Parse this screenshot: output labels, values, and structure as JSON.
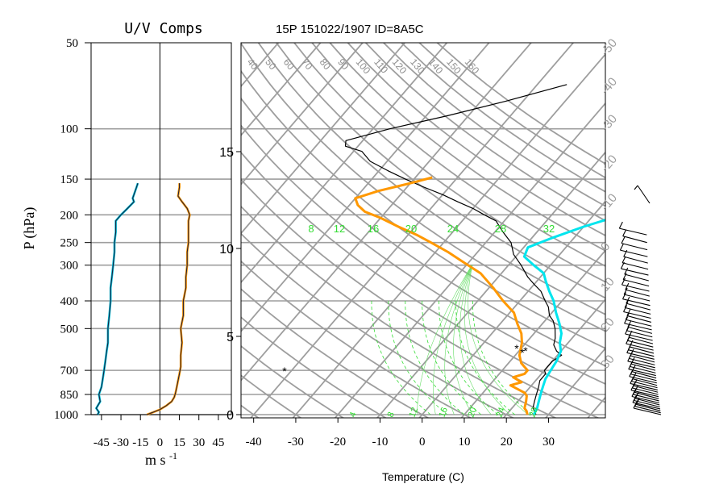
{
  "header": {
    "panel_title": "U/V Comps",
    "chart_title": "15P 151022/1907 ID=8A5C"
  },
  "chart_data": [
    {
      "type": "line",
      "panel": "uv",
      "title": "U/V Comps",
      "xlabel": "m s ",
      "xlabel_sup": "-1",
      "ylabel": "P (hPa)",
      "xlim": [
        -53,
        55
      ],
      "ylim": [
        1000,
        50
      ],
      "yscale": "log",
      "x_ticks": [
        -45,
        -30,
        -15,
        0,
        15,
        30,
        45
      ],
      "x_tick_labels": [
        "-45",
        "-30",
        "-15",
        "0",
        "15",
        "30",
        "45"
      ],
      "y_ticks": [
        50,
        100,
        150,
        200,
        250,
        300,
        400,
        500,
        700,
        850,
        1000
      ],
      "y_tick_labels": [
        "50",
        "100",
        "150",
        "200",
        "250",
        "300",
        "400",
        "500",
        "700",
        "850",
        "1000"
      ],
      "series": [
        {
          "color": "#00bcd4",
          "values": [
            [
              -48,
              1000
            ],
            [
              -47,
              980
            ],
            [
              -49,
              950
            ],
            [
              -46,
              900
            ],
            [
              -47,
              850
            ],
            [
              -45,
              800
            ],
            [
              -44,
              750
            ],
            [
              -43,
              700
            ],
            [
              -42,
              650
            ],
            [
              -41,
              600
            ],
            [
              -40,
              560
            ],
            [
              -40,
              500
            ],
            [
              -39,
              450
            ],
            [
              -38,
              400
            ],
            [
              -38,
              360
            ],
            [
              -37,
              330
            ],
            [
              -36,
              300
            ],
            [
              -35,
              270
            ],
            [
              -35,
              250
            ],
            [
              -34,
              230
            ],
            [
              -34,
              210
            ],
            [
              -30,
              200
            ],
            [
              -25,
              190
            ],
            [
              -20,
              180
            ],
            [
              -21,
              175
            ],
            [
              -18,
              160
            ],
            [
              -17,
              155
            ]
          ]
        },
        {
          "color": "#ff9800",
          "values": [
            [
              -10,
              1000
            ],
            [
              -5,
              980
            ],
            [
              0,
              960
            ],
            [
              5,
              930
            ],
            [
              9,
              900
            ],
            [
              11,
              870
            ],
            [
              12,
              840
            ],
            [
              13,
              800
            ],
            [
              14,
              760
            ],
            [
              15,
              720
            ],
            [
              16,
              680
            ],
            [
              16,
              620
            ],
            [
              17,
              560
            ],
            [
              16,
              500
            ],
            [
              18,
              450
            ],
            [
              18,
              400
            ],
            [
              20,
              360
            ],
            [
              20,
              330
            ],
            [
              21,
              300
            ],
            [
              21,
              270
            ],
            [
              22,
              250
            ],
            [
              22,
              230
            ],
            [
              22,
              210
            ],
            [
              23,
              200
            ],
            [
              21,
              190
            ],
            [
              17,
              180
            ],
            [
              14,
              172
            ],
            [
              15,
              160
            ],
            [
              15,
              155
            ]
          ]
        }
      ]
    },
    {
      "type": "line",
      "panel": "skewt",
      "title": "15P 151022/1907 ID=8A5C",
      "xlabel": "Temperature (C)",
      "ylabel": "",
      "x_ticks": [
        -40,
        -30,
        -20,
        -10,
        0,
        10,
        20,
        30
      ],
      "x_tick_labels": [
        "-40",
        "-30",
        "-20",
        "-10",
        "0",
        "10",
        "20",
        "30"
      ],
      "left_axis_km_ticks": [
        0,
        5,
        10,
        15
      ],
      "left_axis_km_labels": [
        "0",
        "5",
        "10",
        "15"
      ],
      "mixing_ratio_labels": [
        "8",
        "12",
        "16",
        "20",
        "24",
        "28",
        "32"
      ],
      "wetbulb_labels": [
        "4",
        "8",
        "12",
        "16",
        "20",
        "24",
        "28"
      ],
      "dry_adiabat_labels": [
        "40",
        "50",
        "60",
        "70",
        "80",
        "90",
        "100",
        "110",
        "120",
        "130",
        "140",
        "150",
        "160"
      ],
      "isotherm_labels": [
        "-50",
        "-40",
        "-30",
        "-20",
        "-10",
        "0",
        "10",
        "20",
        "30"
      ],
      "series": [
        {
          "name": "",
          "color": "#000000",
          "values": [
            [
              27,
              1000
            ],
            [
              26,
              970
            ],
            [
              25,
              950
            ],
            [
              24,
              900
            ],
            [
              23,
              850
            ],
            [
              22,
              800
            ],
            [
              21,
              760
            ],
            [
              21,
              720
            ],
            [
              20,
              700
            ],
            [
              20,
              650
            ],
            [
              21,
              620
            ],
            [
              19,
              600
            ],
            [
              17,
              570
            ],
            [
              16,
              540
            ],
            [
              14,
              500
            ],
            [
              12,
              470
            ],
            [
              10,
              450
            ],
            [
              8,
              420
            ],
            [
              6,
              400
            ],
            [
              3,
              370
            ],
            [
              0,
              350
            ],
            [
              -3,
              330
            ],
            [
              -7,
              300
            ],
            [
              -11,
              275
            ],
            [
              -14,
              250
            ],
            [
              -18,
              230
            ],
            [
              -22,
              210
            ],
            [
              -26,
              200
            ],
            [
              -30,
              190
            ],
            [
              -35,
              180
            ],
            [
              -40,
              170
            ],
            [
              -46,
              160
            ],
            [
              -52,
              150
            ],
            [
              -58,
              140
            ],
            [
              -64,
              130
            ],
            [
              -68,
              120
            ],
            [
              -73,
              115
            ],
            [
              -74,
              110
            ],
            [
              -66,
              100
            ],
            [
              -55,
              90
            ],
            [
              -44,
              80
            ],
            [
              -33,
              70
            ]
          ]
        },
        {
          "name": "",
          "color": "#ff9800",
          "values": [
            [
              25,
              1000
            ],
            [
              24,
              970
            ],
            [
              23,
              950
            ],
            [
              22,
              900
            ],
            [
              21,
              860
            ],
            [
              20,
              840
            ],
            [
              15,
              790
            ],
            [
              17,
              770
            ],
            [
              14,
              740
            ],
            [
              16,
              720
            ],
            [
              16,
              700
            ],
            [
              13,
              660
            ],
            [
              11,
              620
            ],
            [
              9,
              560
            ],
            [
              7,
              520
            ],
            [
              4,
              480
            ],
            [
              1,
              440
            ],
            [
              -4,
              400
            ],
            [
              -9,
              360
            ],
            [
              -15,
              320
            ],
            [
              -22,
              290
            ],
            [
              -27,
              270
            ],
            [
              -33,
              250
            ],
            [
              -38,
              235
            ],
            [
              -44,
              220
            ],
            [
              -50,
              205
            ],
            [
              -55,
              195
            ],
            [
              -58,
              185
            ],
            [
              -60,
              175
            ],
            [
              -56,
              165
            ],
            [
              -50,
              155
            ],
            [
              -46,
              148
            ]
          ]
        },
        {
          "name": "",
          "color": "#00e5ee",
          "values": [
            [
              26.5,
              1000
            ],
            [
              26,
              950
            ],
            [
              25,
              900
            ],
            [
              24,
              850
            ],
            [
              23,
              800
            ],
            [
              22,
              750
            ],
            [
              21.5,
              700
            ],
            [
              21,
              650
            ],
            [
              20,
              600
            ],
            [
              18,
              560
            ],
            [
              16.5,
              520
            ],
            [
              14,
              480
            ],
            [
              11,
              440
            ],
            [
              8,
              400
            ],
            [
              5,
              370
            ],
            [
              2,
              340
            ],
            [
              0,
              320
            ],
            [
              -4,
              300
            ],
            [
              -8,
              280
            ],
            [
              -9,
              260
            ],
            [
              -5,
              240
            ],
            [
              0,
              220
            ],
            [
              5,
              205
            ],
            [
              10,
              190
            ]
          ]
        }
      ]
    }
  ]
}
